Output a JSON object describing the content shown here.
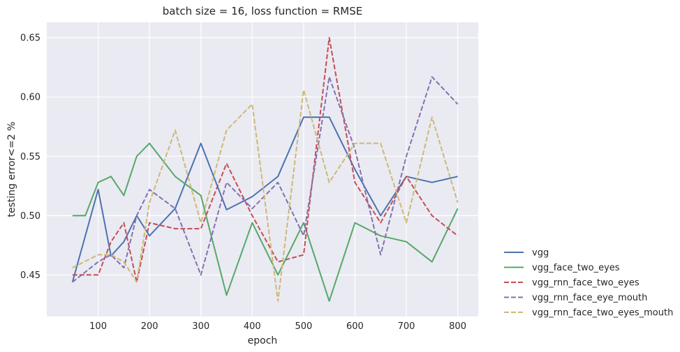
{
  "chart_data": {
    "type": "line",
    "title": "batch size = 16, loss function = RMSE",
    "xlabel": "epoch",
    "ylabel": "testing error<=2 %",
    "xlim": [
      0,
      840
    ],
    "ylim": [
      0.415,
      0.663
    ],
    "xticks": [
      100,
      200,
      300,
      400,
      500,
      600,
      700,
      800
    ],
    "yticks": [
      0.45,
      0.5,
      0.55,
      0.6,
      0.65
    ],
    "ytick_labels": [
      "0.45",
      "0.50",
      "0.55",
      "0.60",
      "0.65"
    ],
    "grid": true,
    "background": "#EAEAF2",
    "legend_position": "outside-right-bottom",
    "x": [
      50,
      75,
      100,
      125,
      150,
      175,
      200,
      250,
      300,
      350,
      400,
      450,
      500,
      550,
      600,
      650,
      700,
      750,
      800
    ],
    "series": [
      {
        "name": "vgg",
        "color": "#4C72B0",
        "style": "solid",
        "x": [
          50,
          100,
          125,
          150,
          175,
          200,
          250,
          300,
          350,
          400,
          450,
          500,
          550,
          600,
          650,
          700,
          750,
          800
        ],
        "values": [
          0.444,
          0.522,
          0.466,
          0.478,
          0.5,
          0.483,
          0.506,
          0.561,
          0.505,
          0.516,
          0.533,
          0.583,
          0.583,
          0.539,
          0.5,
          0.533,
          0.528,
          0.533
        ]
      },
      {
        "name": "vgg_face_two_eyes",
        "color": "#55A868",
        "style": "solid",
        "x": [
          50,
          75,
          100,
          125,
          150,
          175,
          200,
          250,
          300,
          350,
          400,
          450,
          500,
          550,
          600,
          650,
          700,
          750,
          800
        ],
        "values": [
          0.5,
          0.5,
          0.528,
          0.533,
          0.517,
          0.55,
          0.561,
          0.533,
          0.517,
          0.433,
          0.494,
          0.45,
          0.494,
          0.428,
          0.494,
          0.483,
          0.478,
          0.461,
          0.506
        ]
      },
      {
        "name": "vgg_rnn_face_two_eyes",
        "color": "#C44E52",
        "style": "dashed",
        "x": [
          50,
          100,
          125,
          150,
          175,
          200,
          250,
          300,
          350,
          400,
          450,
          500,
          550,
          600,
          650,
          700,
          750,
          800
        ],
        "values": [
          0.45,
          0.45,
          0.478,
          0.494,
          0.444,
          0.494,
          0.489,
          0.489,
          0.544,
          0.5,
          0.461,
          0.467,
          0.65,
          0.528,
          0.494,
          0.533,
          0.5,
          0.483
        ]
      },
      {
        "name": "vgg_rnn_face_eye_mouth",
        "color": "#8172B2",
        "style": "dashed",
        "x": [
          50,
          100,
          125,
          150,
          175,
          200,
          250,
          300,
          350,
          400,
          450,
          500,
          550,
          600,
          650,
          700,
          750,
          800
        ],
        "values": [
          0.444,
          0.461,
          0.467,
          0.456,
          0.5,
          0.522,
          0.506,
          0.45,
          0.528,
          0.506,
          0.528,
          0.483,
          0.617,
          0.556,
          0.467,
          0.55,
          0.617,
          0.594
        ]
      },
      {
        "name": "vgg_rnn_face_two_eyes_mouth",
        "color": "#CCB974",
        "style": "dashed",
        "x": [
          50,
          100,
          125,
          150,
          175,
          200,
          250,
          300,
          350,
          400,
          450,
          500,
          550,
          600,
          650,
          700,
          750,
          800
        ],
        "values": [
          0.456,
          0.467,
          0.467,
          0.461,
          0.444,
          0.511,
          0.572,
          0.494,
          0.572,
          0.594,
          0.428,
          0.606,
          0.528,
          0.561,
          0.561,
          0.494,
          0.583,
          0.511
        ]
      }
    ]
  }
}
